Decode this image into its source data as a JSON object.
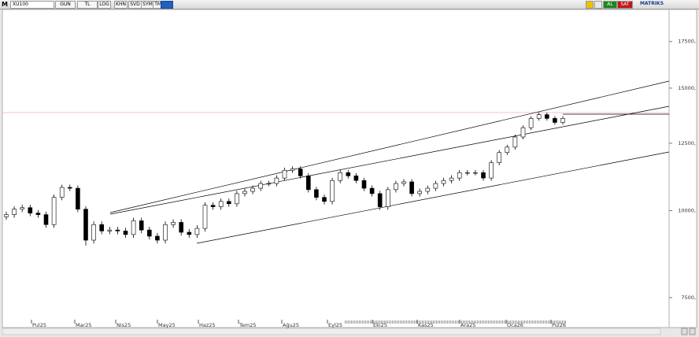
{
  "toolbar": {
    "symbol": "XU100",
    "buttons": [
      "GUN",
      "TL",
      "LOG",
      "KHN",
      "SVD",
      "SYM",
      "TMP"
    ],
    "buy": "AL",
    "sell": "SAT",
    "brand": "MATRIKS"
  },
  "chart_data": {
    "type": "candlestick",
    "log_scale": true,
    "color": "#000000",
    "open": [
      9800,
      9870,
      10050,
      10100,
      9920,
      9870,
      9550,
      10450,
      10800,
      10770,
      10050,
      9070,
      9550,
      9350,
      9380,
      9350,
      9240,
      9670,
      9380,
      9190,
      9070,
      9550,
      9620,
      9310,
      9240,
      9430,
      10180,
      10130,
      10310,
      10230,
      10580,
      10660,
      10770,
      10940,
      10940,
      11140,
      11430,
      11480,
      11220,
      10720,
      10450,
      10310,
      11050,
      11340,
      11220,
      11050,
      10770,
      10580,
      10130,
      10720,
      10940,
      11000,
      10580,
      10660,
      10770,
      10940,
      11050,
      11140,
      11340,
      11340,
      11340,
      11140,
      11720,
      12120,
      12340,
      12760,
      13160,
      13570,
      13740,
      13570,
      13390
    ],
    "high": [
      9970,
      10150,
      10200,
      10200,
      10020,
      9970,
      10550,
      10900,
      10900,
      10870,
      10150,
      9650,
      9650,
      9480,
      9480,
      9450,
      9770,
      9770,
      9480,
      9290,
      9650,
      9720,
      9720,
      9410,
      9530,
      10280,
      10280,
      10410,
      10410,
      10680,
      10760,
      10870,
      11040,
      11040,
      11240,
      11530,
      11580,
      11580,
      11320,
      10820,
      10550,
      11150,
      11440,
      11440,
      11320,
      11150,
      10870,
      10680,
      10820,
      11040,
      11100,
      11100,
      10760,
      10870,
      11040,
      11150,
      11240,
      11440,
      11440,
      11440,
      11440,
      11820,
      12220,
      12440,
      12860,
      13260,
      13670,
      13840,
      13840,
      13670,
      13670
    ],
    "low": [
      9700,
      9770,
      9950,
      9820,
      9770,
      9450,
      9450,
      10350,
      10670,
      9950,
      8910,
      8970,
      9250,
      9250,
      9250,
      9140,
      9140,
      9280,
      9090,
      8970,
      8970,
      9450,
      9210,
      9140,
      9140,
      9330,
      10030,
      10030,
      10130,
      10130,
      10480,
      10560,
      10670,
      10840,
      10840,
      11040,
      11330,
      11120,
      10620,
      10350,
      10210,
      10210,
      10950,
      11120,
      10950,
      10670,
      10480,
      10030,
      10030,
      10620,
      10840,
      10480,
      10480,
      10560,
      10670,
      10840,
      10950,
      11040,
      11240,
      11240,
      11040,
      11040,
      11620,
      12020,
      12240,
      12660,
      13060,
      13470,
      13470,
      13290,
      13290
    ],
    "close": [
      9870,
      10050,
      10100,
      9920,
      9870,
      9550,
      10450,
      10800,
      10770,
      10050,
      9070,
      9550,
      9350,
      9380,
      9350,
      9240,
      9670,
      9380,
      9190,
      9070,
      9550,
      9620,
      9310,
      9240,
      9430,
      10180,
      10130,
      10310,
      10230,
      10580,
      10660,
      10770,
      10940,
      10940,
      11140,
      11430,
      11480,
      11220,
      10720,
      10450,
      10310,
      11050,
      11340,
      11220,
      11050,
      10770,
      10580,
      10130,
      10720,
      10940,
      11000,
      10580,
      10660,
      10770,
      10940,
      11050,
      11140,
      11340,
      11340,
      11340,
      11140,
      11720,
      12120,
      12340,
      12760,
      13160,
      13570,
      13740,
      13570,
      13390,
      13570
    ],
    "ylim": [
      6990,
      19460
    ],
    "yticks": [
      {
        "value": 7500,
        "label": "7500,"
      },
      {
        "value": 10000,
        "label": "10000,"
      },
      {
        "value": 12500,
        "label": "12500,"
      },
      {
        "value": 15000,
        "label": "15000,"
      },
      {
        "value": 17500,
        "label": "17500,"
      }
    ],
    "x_labels": [
      "Pul25",
      "Mar25",
      "Nis25",
      "May25",
      "Haz25",
      "Tem25",
      "Ağu25",
      "Eyl25",
      "Eki25",
      "Kas25",
      "Ara25",
      "Oca26",
      "Pul26"
    ]
  }
}
